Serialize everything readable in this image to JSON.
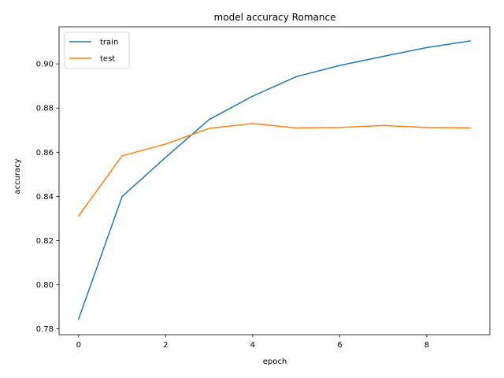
{
  "chart_data": {
    "type": "line",
    "title": "model accuracy Romance",
    "xlabel": "epoch",
    "ylabel": "accuracy",
    "x": [
      0,
      1,
      2,
      3,
      4,
      5,
      6,
      7,
      8,
      9
    ],
    "xlim": [
      -0.45,
      9.45
    ],
    "ylim": [
      0.7774,
      0.9168
    ],
    "xticks": [
      0,
      2,
      4,
      6,
      8
    ],
    "yticks": [
      0.78,
      0.8,
      0.82,
      0.84,
      0.86,
      0.88,
      0.9
    ],
    "xtick_labels": [
      "0",
      "2",
      "4",
      "6",
      "8"
    ],
    "ytick_labels": [
      "0.78",
      "0.80",
      "0.82",
      "0.84",
      "0.86",
      "0.88",
      "0.90"
    ],
    "grid": false,
    "legend_position": "top-left",
    "series": [
      {
        "name": "train",
        "color": "#1f77b4",
        "values": [
          0.7845,
          0.84,
          0.8577,
          0.8748,
          0.8854,
          0.8942,
          0.8993,
          0.9034,
          0.9074,
          0.9104
        ]
      },
      {
        "name": "test",
        "color": "#ff7f0e",
        "values": [
          0.8312,
          0.8584,
          0.8637,
          0.8708,
          0.873,
          0.871,
          0.8712,
          0.8721,
          0.8712,
          0.871
        ]
      }
    ]
  }
}
